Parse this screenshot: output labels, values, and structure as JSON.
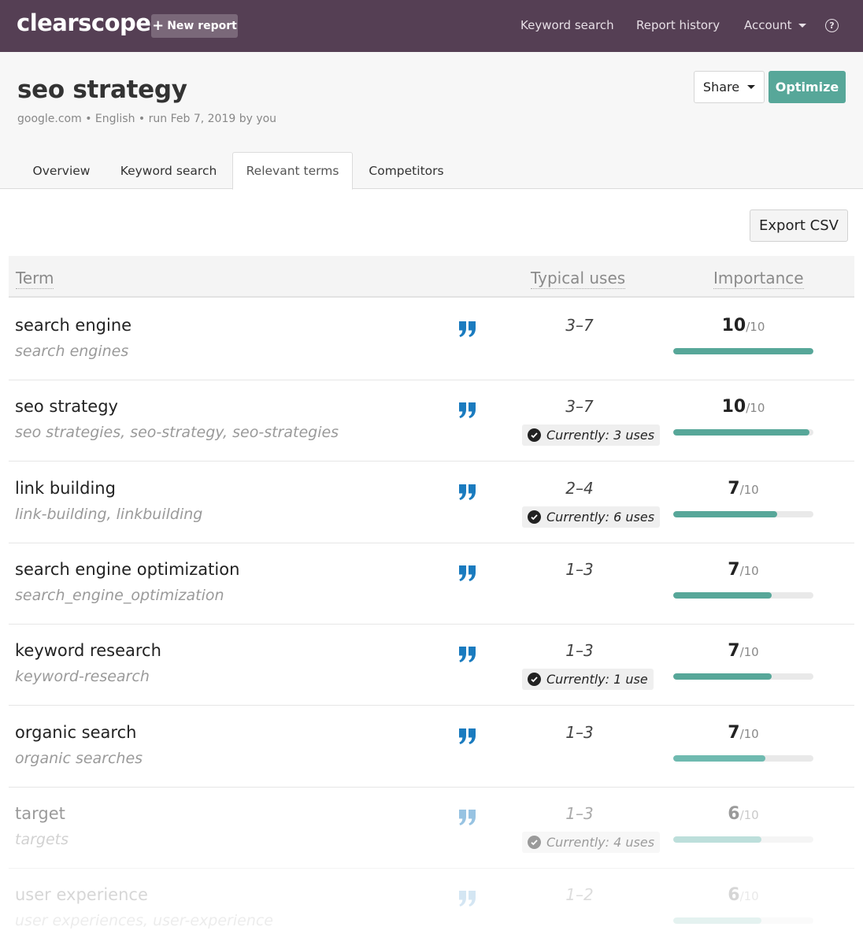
{
  "nav": {
    "logo": "clearscope",
    "new_report": "New report",
    "keyword_search": "Keyword search",
    "report_history": "Report history",
    "account": "Account",
    "help": "?"
  },
  "report": {
    "title": "seo strategy",
    "meta": "google.com • English • run Feb 7, 2019 by you",
    "share": "Share",
    "optimize": "Optimize"
  },
  "tabs": [
    {
      "label": "Overview"
    },
    {
      "label": "Keyword search"
    },
    {
      "label": "Relevant terms",
      "active": true
    },
    {
      "label": "Competitors"
    }
  ],
  "export_csv": "Export CSV",
  "table": {
    "headers": {
      "term": "Term",
      "typical_uses": "Typical uses",
      "importance": "Importance"
    },
    "rows": [
      {
        "term": "search engine",
        "variants": "search engines",
        "typical_uses": "3–7",
        "current": "",
        "score": "10",
        "denominator": "/10",
        "fill": 1.0
      },
      {
        "term": "seo strategy",
        "variants": "seo strategies, seo-strategy, seo-strategies",
        "typical_uses": "3–7",
        "current": "Currently: 3 uses",
        "score": "10",
        "denominator": "/10",
        "fill": 0.97
      },
      {
        "term": "link building",
        "variants": "link-building, linkbuilding",
        "typical_uses": "2–4",
        "current": "Currently: 6 uses",
        "score": "7",
        "denominator": "/10",
        "fill": 0.74
      },
      {
        "term": "search engine optimization",
        "variants": "search_engine_optimization",
        "typical_uses": "1–3",
        "current": "",
        "score": "7",
        "denominator": "/10",
        "fill": 0.7
      },
      {
        "term": "keyword research",
        "variants": "keyword-research",
        "typical_uses": "1–3",
        "current": "Currently: 1 use",
        "score": "7",
        "denominator": "/10",
        "fill": 0.7
      },
      {
        "term": "organic search",
        "variants": "organic searches",
        "typical_uses": "1–3",
        "current": "",
        "score": "7",
        "denominator": "/10",
        "fill": 0.66
      },
      {
        "term": "target",
        "variants": "targets",
        "typical_uses": "1–3",
        "current": "Currently: 4 uses",
        "score": "6",
        "denominator": "/10",
        "fill": 0.63
      },
      {
        "term": "user experience",
        "variants": "user experiences, user-experience",
        "typical_uses": "1–2",
        "current": "",
        "score": "6",
        "denominator": "/10",
        "fill": 0.63
      }
    ]
  },
  "colors": {
    "nav_bg": "#553f54",
    "accent": "#57a799",
    "quote_icon": "#1a7bbf"
  }
}
